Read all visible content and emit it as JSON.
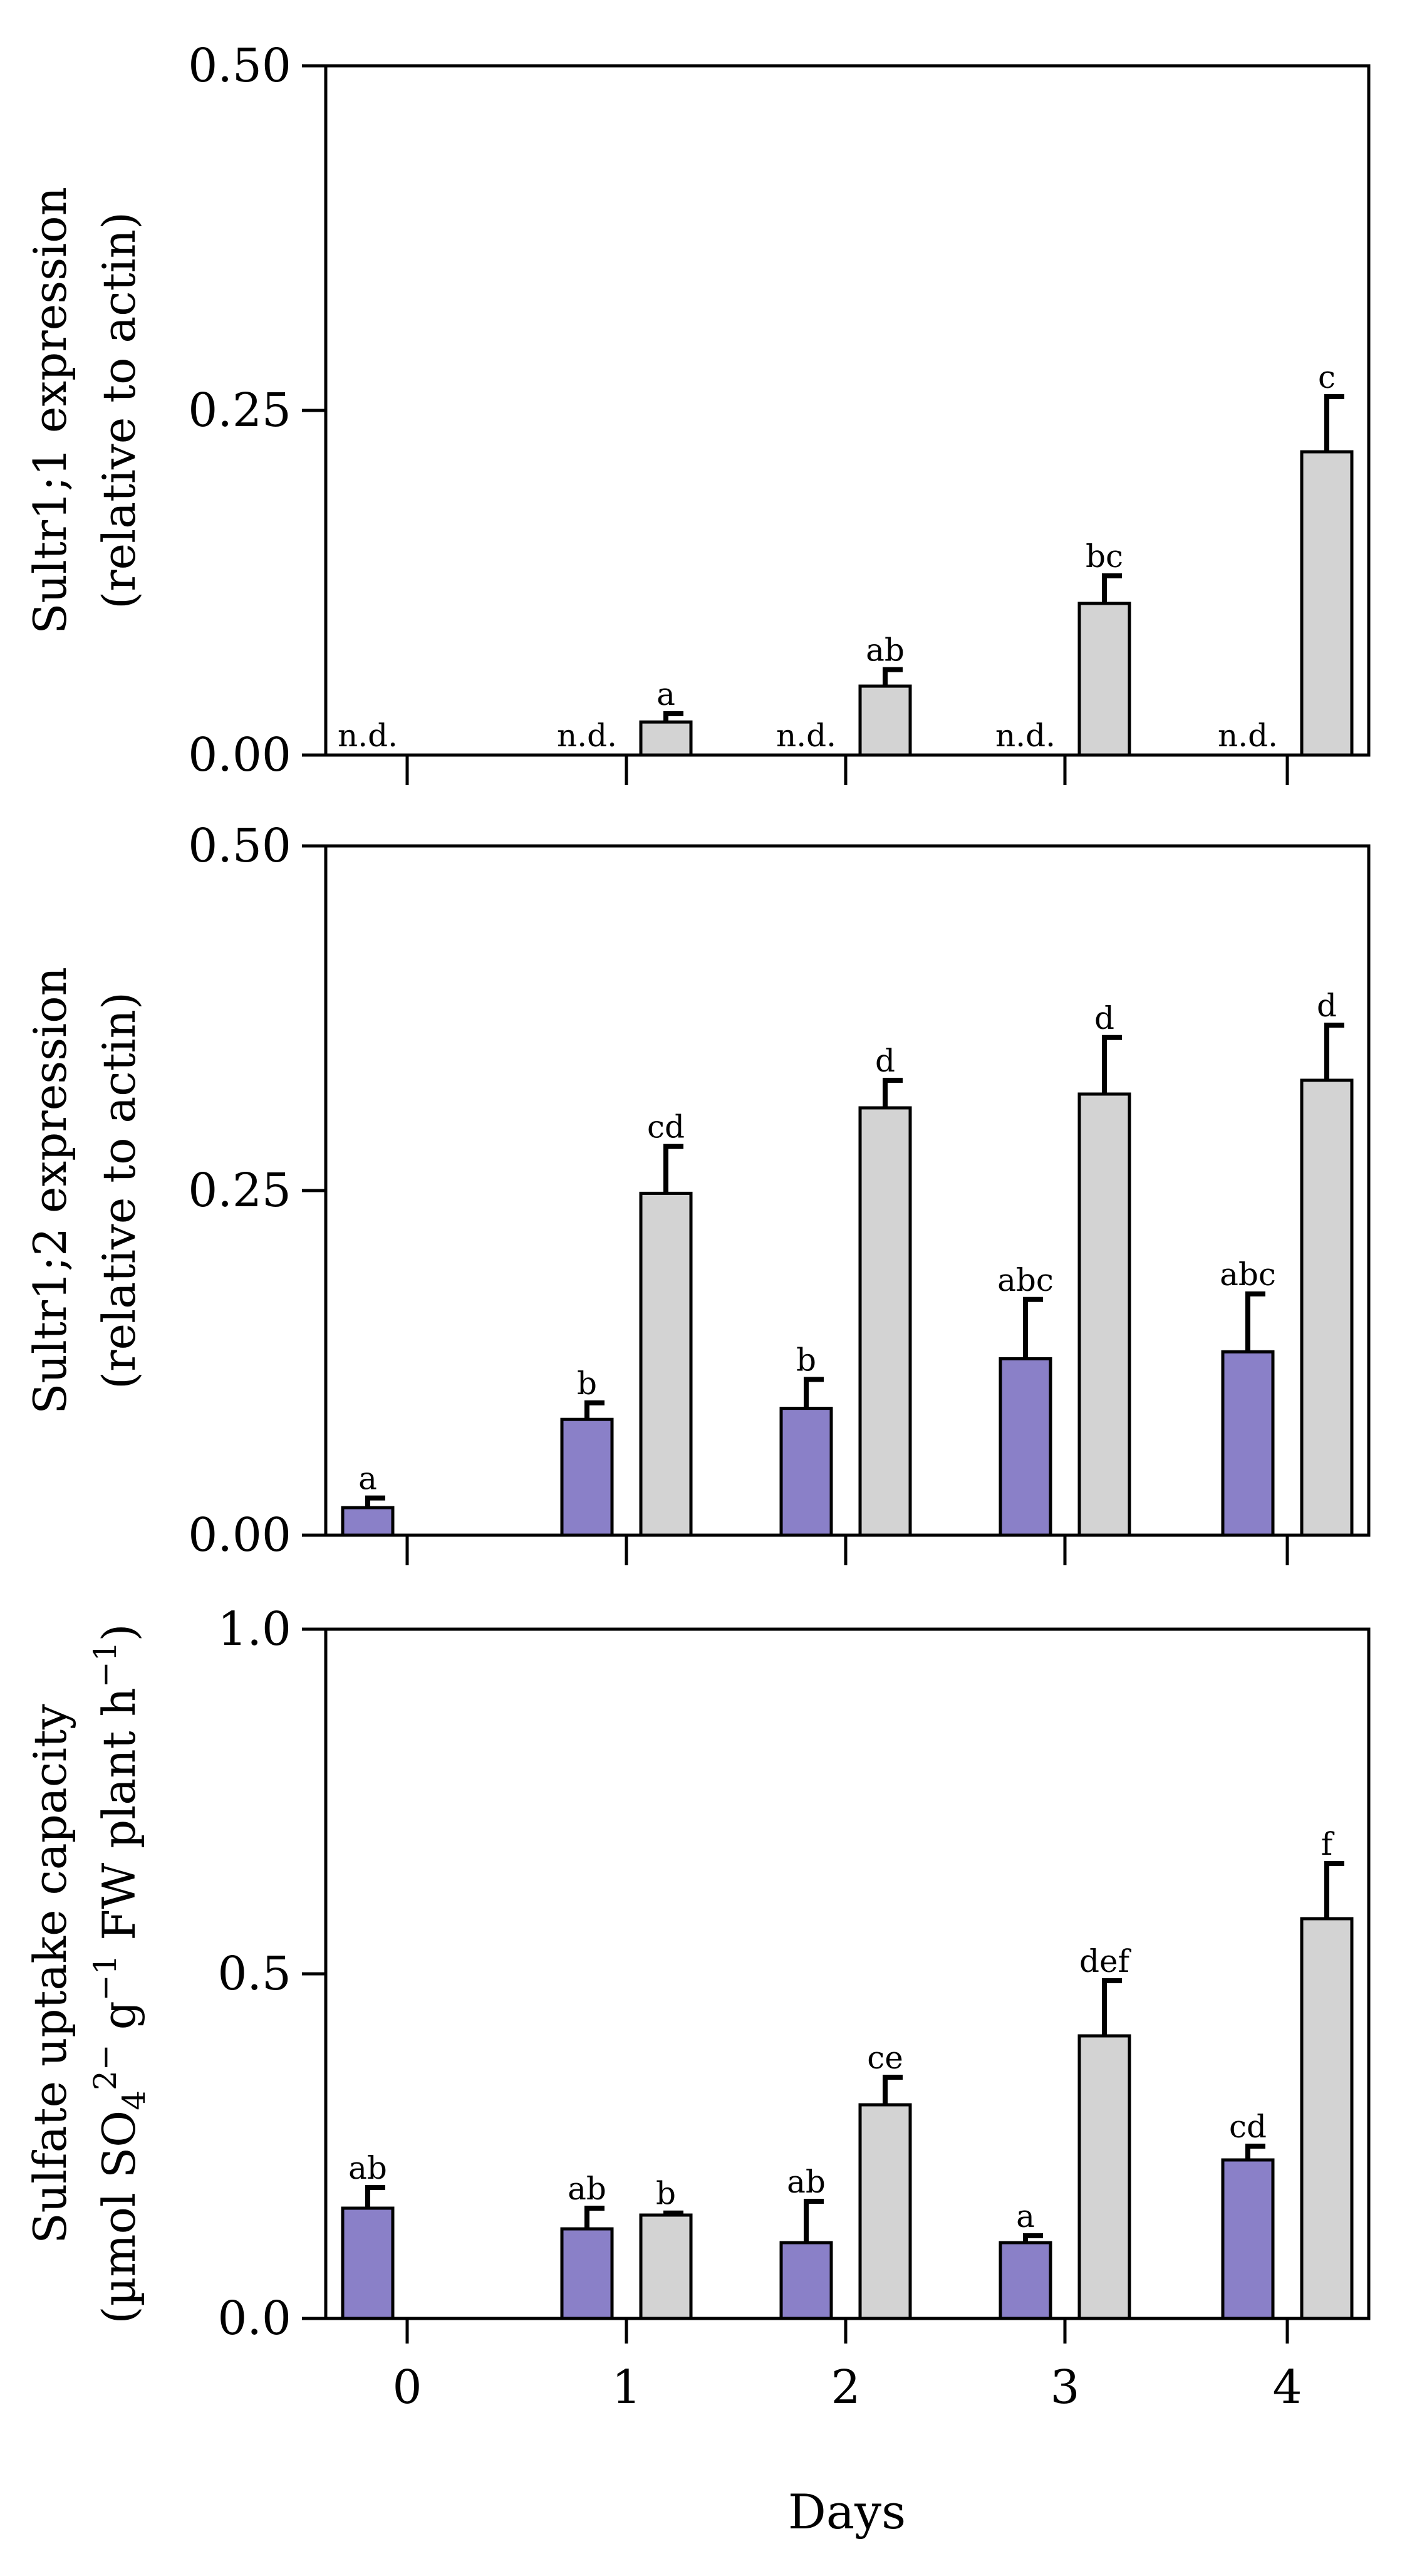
{
  "chart_data": [
    {
      "type": "bar",
      "ylabel_lines": [
        "Sultr1;1 expression",
        "(relative to actin)"
      ],
      "ylim": [
        0,
        0.5
      ],
      "yticks": [
        0,
        0.25,
        0.5
      ],
      "ytick_labels": [
        "0.00",
        "0.25",
        "0.50"
      ],
      "categories": [
        "0",
        "1",
        "2",
        "3",
        "4"
      ],
      "series": [
        {
          "color": "#8a80c8",
          "values": [
            null,
            null,
            null,
            null,
            null
          ],
          "errors": [
            null,
            null,
            null,
            null,
            null
          ],
          "labels": [
            "n.d.",
            "n.d.",
            "n.d.",
            "n.d.",
            "n.d."
          ]
        },
        {
          "color": "#d3d3d3",
          "values": [
            null,
            0.024,
            0.05,
            0.11,
            0.22
          ],
          "errors": [
            null,
            0.006,
            0.012,
            0.02,
            0.04
          ],
          "labels": [
            "",
            "a",
            "ab",
            "bc",
            "c"
          ]
        }
      ]
    },
    {
      "type": "bar",
      "ylabel_lines": [
        "Sultr1;2 expression",
        "(relative to actin)"
      ],
      "ylim": [
        0,
        0.5
      ],
      "yticks": [
        0,
        0.25,
        0.5
      ],
      "ytick_labels": [
        "0.00",
        "0.25",
        "0.50"
      ],
      "categories": [
        "0",
        "1",
        "2",
        "3",
        "4"
      ],
      "series": [
        {
          "color": "#8a80c8",
          "values": [
            0.02,
            0.084,
            0.092,
            0.128,
            0.133
          ],
          "errors": [
            0.007,
            0.012,
            0.021,
            0.043,
            0.042
          ],
          "labels": [
            "a",
            "b",
            "b",
            "abc",
            "abc"
          ]
        },
        {
          "color": "#d3d3d3",
          "values": [
            null,
            0.248,
            0.31,
            0.32,
            0.33
          ],
          "errors": [
            null,
            0.034,
            0.02,
            0.041,
            0.04
          ],
          "labels": [
            "",
            "cd",
            "d",
            "d",
            "d"
          ]
        }
      ]
    },
    {
      "type": "bar",
      "ylabel_lines": [
        "Sulfate uptake capacity"
      ],
      "ylabel2": {
        "open": "(µmol SO",
        "sub": "4",
        "sup": "2−",
        "g": " g",
        "sup2": "−1",
        "rest": " FW plant h",
        "sup3": "−1",
        "close": ")"
      },
      "ylim": [
        0,
        1
      ],
      "yticks": [
        0,
        0.5,
        1
      ],
      "ytick_labels": [
        "0.0",
        "0.5",
        "1.0"
      ],
      "categories": [
        "0",
        "1",
        "2",
        "3",
        "4"
      ],
      "xlabel": "Days",
      "series": [
        {
          "color": "#8a80c8",
          "values": [
            0.16,
            0.13,
            0.11,
            0.11,
            0.23
          ],
          "errors": [
            0.03,
            0.03,
            0.06,
            0.01,
            0.02
          ],
          "labels": [
            "ab",
            "ab",
            "ab",
            "a",
            "cd"
          ]
        },
        {
          "color": "#d3d3d3",
          "values": [
            null,
            0.15,
            0.31,
            0.41,
            0.58
          ],
          "errors": [
            null,
            0.003,
            0.04,
            0.08,
            0.08
          ],
          "labels": [
            "",
            "b",
            "ce",
            "def",
            "f"
          ]
        }
      ]
    }
  ]
}
